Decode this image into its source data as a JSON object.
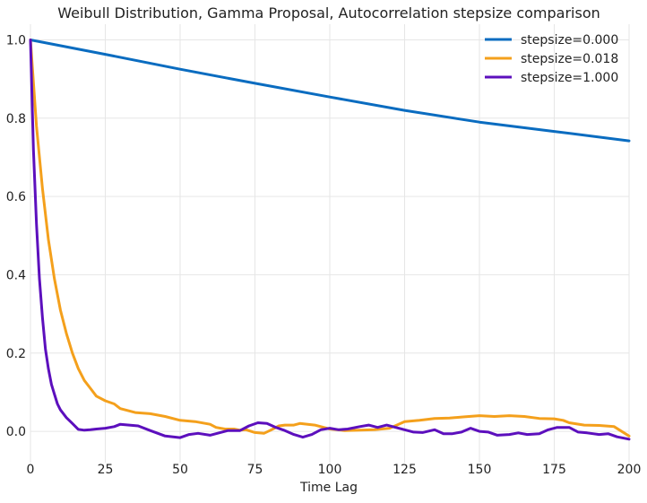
{
  "chart_data": {
    "type": "line",
    "title": "Weibull Distribution, Gamma Proposal, Autocorrelation stepsize comparison",
    "xlabel": "Time Lag",
    "ylabel": "",
    "xlim": [
      0,
      200
    ],
    "ylim": [
      -0.08,
      1.04
    ],
    "xticks": [
      0,
      25,
      50,
      75,
      100,
      125,
      150,
      175,
      200
    ],
    "yticks": [
      0.0,
      0.2,
      0.4,
      0.6,
      0.8,
      1.0
    ],
    "xtick_labels": [
      "0",
      "25",
      "50",
      "75",
      "100",
      "125",
      "150",
      "175",
      "200"
    ],
    "ytick_labels": [
      "0.0",
      "0.2",
      "0.4",
      "0.6",
      "0.8",
      "1.0"
    ],
    "grid": true,
    "legend_position": "top-right",
    "series": [
      {
        "name": "stepsize=0.000",
        "color": "#0a6cc0",
        "x": [
          0,
          25,
          50,
          75,
          100,
          125,
          150,
          175,
          200
        ],
        "y": [
          1.0,
          0.963,
          0.925,
          0.889,
          0.854,
          0.82,
          0.79,
          0.766,
          0.742
        ]
      },
      {
        "name": "stepsize=0.018",
        "color": "#f4a01c",
        "x": [
          0,
          2,
          4,
          6,
          8,
          10,
          12,
          14,
          16,
          18,
          20,
          22,
          25,
          28,
          30,
          35,
          40,
          45,
          50,
          55,
          60,
          62,
          65,
          68,
          70,
          72,
          75,
          78,
          80,
          83,
          85,
          88,
          90,
          95,
          100,
          105,
          110,
          115,
          120,
          123,
          125,
          130,
          135,
          140,
          145,
          150,
          155,
          160,
          165,
          170,
          175,
          178,
          180,
          185,
          190,
          195,
          200
        ],
        "y": [
          1.0,
          0.78,
          0.62,
          0.49,
          0.39,
          0.31,
          0.25,
          0.2,
          0.16,
          0.13,
          0.11,
          0.09,
          0.078,
          0.07,
          0.058,
          0.048,
          0.045,
          0.038,
          0.028,
          0.025,
          0.018,
          0.01,
          0.006,
          0.006,
          0.003,
          0.004,
          -0.003,
          -0.005,
          0.002,
          0.014,
          0.016,
          0.016,
          0.02,
          0.016,
          0.006,
          0.002,
          0.003,
          0.004,
          0.008,
          0.018,
          0.025,
          0.028,
          0.033,
          0.034,
          0.037,
          0.04,
          0.038,
          0.04,
          0.038,
          0.033,
          0.032,
          0.028,
          0.022,
          0.016,
          0.015,
          0.012,
          -0.012
        ]
      },
      {
        "name": "stepsize=1.000",
        "color": "#5c0fbd",
        "x": [
          0,
          1,
          2,
          3,
          4,
          5,
          6,
          7,
          8,
          9,
          10,
          12,
          14,
          16,
          18,
          20,
          22,
          25,
          28,
          30,
          33,
          36,
          40,
          45,
          50,
          53,
          56,
          60,
          63,
          66,
          70,
          73,
          76,
          79,
          82,
          85,
          88,
          91,
          94,
          97,
          100,
          103,
          106,
          110,
          113,
          116,
          119,
          122,
          125,
          128,
          131,
          135,
          138,
          141,
          144,
          147,
          150,
          153,
          156,
          160,
          163,
          166,
          170,
          173,
          176,
          180,
          183,
          186,
          190,
          193,
          196,
          200
        ],
        "y": [
          1.0,
          0.72,
          0.53,
          0.39,
          0.29,
          0.21,
          0.16,
          0.12,
          0.095,
          0.07,
          0.055,
          0.035,
          0.02,
          0.005,
          0.003,
          0.004,
          0.006,
          0.008,
          0.012,
          0.018,
          0.016,
          0.014,
          0.002,
          -0.012,
          -0.016,
          -0.008,
          -0.005,
          -0.01,
          -0.004,
          0.002,
          0.002,
          0.014,
          0.022,
          0.02,
          0.01,
          0.002,
          -0.008,
          -0.015,
          -0.008,
          0.004,
          0.008,
          0.004,
          0.006,
          0.012,
          0.016,
          0.01,
          0.016,
          0.01,
          0.004,
          -0.002,
          -0.003,
          0.004,
          -0.006,
          -0.006,
          -0.002,
          0.008,
          0.0,
          -0.002,
          -0.01,
          -0.008,
          -0.004,
          -0.008,
          -0.006,
          0.004,
          0.01,
          0.01,
          -0.002,
          -0.004,
          -0.008,
          -0.006,
          -0.014,
          -0.02
        ]
      }
    ]
  }
}
